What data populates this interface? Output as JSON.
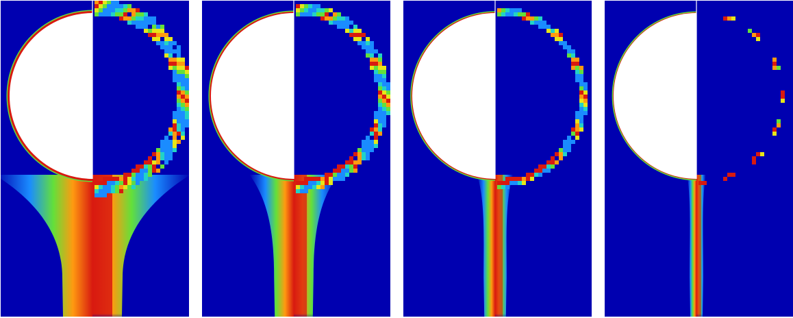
{
  "figure": {
    "panel_count": 4,
    "colors": {
      "background": "#0000b0",
      "obstacle": "#ffffff",
      "colormap": [
        "#0000b0",
        "#1a8cff",
        "#22d3c6",
        "#63e03a",
        "#e6e619",
        "#ff9a10",
        "#d81a10"
      ]
    },
    "panels": [
      {
        "id": "panel-1",
        "wake_level": 1.0
      },
      {
        "id": "panel-2",
        "wake_level": 0.62
      },
      {
        "id": "panel-3",
        "wake_level": 0.32
      },
      {
        "id": "panel-4",
        "wake_level": 0.15
      }
    ]
  }
}
